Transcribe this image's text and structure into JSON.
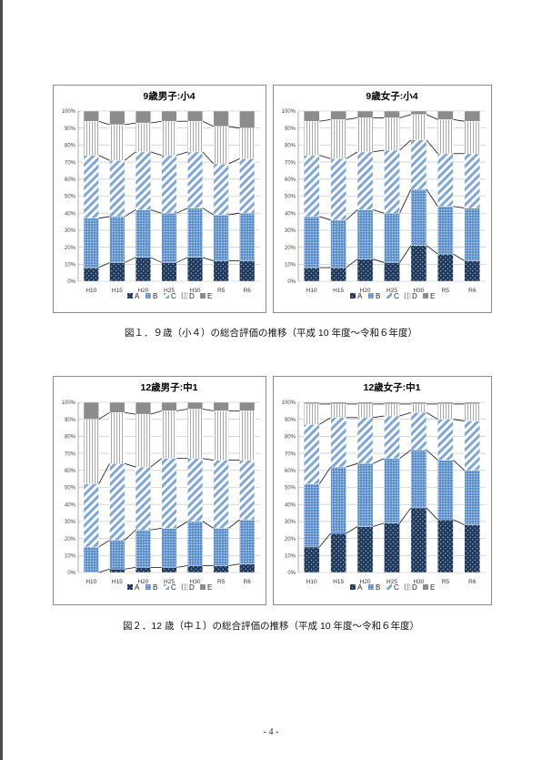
{
  "chart_data": [
    {
      "type": "bar",
      "stacked": true,
      "title": "9歳男子:小4",
      "categories": [
        "H10",
        "H15",
        "H20",
        "H25",
        "H30",
        "R5",
        "R6"
      ],
      "yticks": [
        "0%",
        "10%",
        "20%",
        "30%",
        "40%",
        "50%",
        "60%",
        "70%",
        "80%",
        "90%",
        "100%"
      ],
      "ylim": [
        0,
        100
      ],
      "legend_position": "bottom",
      "series": [
        {
          "name": "A",
          "values": [
            8,
            11,
            14,
            11,
            14,
            12,
            12
          ]
        },
        {
          "name": "B",
          "values": [
            29,
            27,
            28,
            29,
            29,
            27,
            28
          ]
        },
        {
          "name": "C",
          "values": [
            37,
            33,
            34,
            34,
            33,
            30,
            32
          ]
        },
        {
          "name": "D",
          "values": [
            20,
            21,
            17,
            20,
            18,
            22,
            18
          ]
        },
        {
          "name": "E",
          "values": [
            6,
            8,
            7,
            6,
            6,
            9,
            10
          ]
        }
      ]
    },
    {
      "type": "bar",
      "stacked": true,
      "title": "9歳女子:小4",
      "categories": [
        "H10",
        "H15",
        "H20",
        "H25",
        "H30",
        "R5",
        "R6"
      ],
      "yticks": [
        "0%",
        "10%",
        "20%",
        "30%",
        "40%",
        "50%",
        "60%",
        "70%",
        "80%",
        "90%",
        "100%"
      ],
      "ylim": [
        0,
        100
      ],
      "legend_position": "bottom",
      "series": [
        {
          "name": "A",
          "values": [
            8,
            8,
            13,
            11,
            21,
            16,
            12
          ]
        },
        {
          "name": "B",
          "values": [
            30,
            28,
            29,
            29,
            33,
            28,
            31
          ]
        },
        {
          "name": "C",
          "values": [
            36,
            36,
            34,
            37,
            29,
            31,
            32
          ]
        },
        {
          "name": "D",
          "values": [
            20,
            23,
            20,
            19,
            15,
            20,
            19
          ]
        },
        {
          "name": "E",
          "values": [
            6,
            5,
            4,
            4,
            2,
            5,
            6
          ]
        }
      ]
    },
    {
      "type": "bar",
      "stacked": true,
      "title": "12歳男子:中1",
      "categories": [
        "H10",
        "H15",
        "H20",
        "H25",
        "H30",
        "R5",
        "R6"
      ],
      "yticks": [
        "0%",
        "10%",
        "20%",
        "30%",
        "40%",
        "50%",
        "60%",
        "70%",
        "80%",
        "90%",
        "100%"
      ],
      "ylim": [
        0,
        100
      ],
      "legend_position": "bottom",
      "series": [
        {
          "name": "A",
          "values": [
            0,
            2,
            3,
            3,
            4,
            4,
            5
          ]
        },
        {
          "name": "B",
          "values": [
            15,
            17,
            22,
            23,
            26,
            22,
            26
          ]
        },
        {
          "name": "C",
          "values": [
            37,
            45,
            37,
            41,
            37,
            40,
            35
          ]
        },
        {
          "name": "D",
          "values": [
            38,
            30,
            31,
            28,
            29,
            29,
            29
          ]
        },
        {
          "name": "E",
          "values": [
            10,
            6,
            7,
            5,
            4,
            5,
            5
          ]
        }
      ]
    },
    {
      "type": "bar",
      "stacked": true,
      "title": "12歳女子:中1",
      "categories": [
        "H10",
        "H15",
        "H20",
        "H25",
        "H30",
        "R5",
        "R6"
      ],
      "yticks": [
        "0%",
        "10%",
        "20%",
        "30%",
        "40%",
        "50%",
        "60%",
        "70%",
        "80%",
        "90%",
        "100%"
      ],
      "ylim": [
        0,
        100
      ],
      "legend_position": "bottom",
      "series": [
        {
          "name": "A",
          "values": [
            15,
            23,
            27,
            29,
            38,
            31,
            28
          ]
        },
        {
          "name": "B",
          "values": [
            37,
            39,
            37,
            38,
            34,
            35,
            32
          ]
        },
        {
          "name": "C",
          "values": [
            35,
            29,
            27,
            25,
            22,
            24,
            29
          ]
        },
        {
          "name": "D",
          "values": [
            12,
            8,
            8,
            7,
            5,
            9,
            10
          ]
        },
        {
          "name": "E",
          "values": [
            1,
            1,
            1,
            1,
            1,
            1,
            1
          ]
        }
      ]
    }
  ],
  "captions": {
    "fig1": "図１．９歳（小４）の総合評価の推移（平成 10 年度～令和６年度）",
    "fig2": "図２．12 歳（中１）の総合評価の推移（平成 10 年度～令和６年度）"
  },
  "page_number": "- 4 -",
  "colors": {
    "A": "#1f3a5f",
    "B": "#5b8fd0",
    "C": "#7ea6d6",
    "D": "#ffffff",
    "E": "#8c8c8c"
  }
}
